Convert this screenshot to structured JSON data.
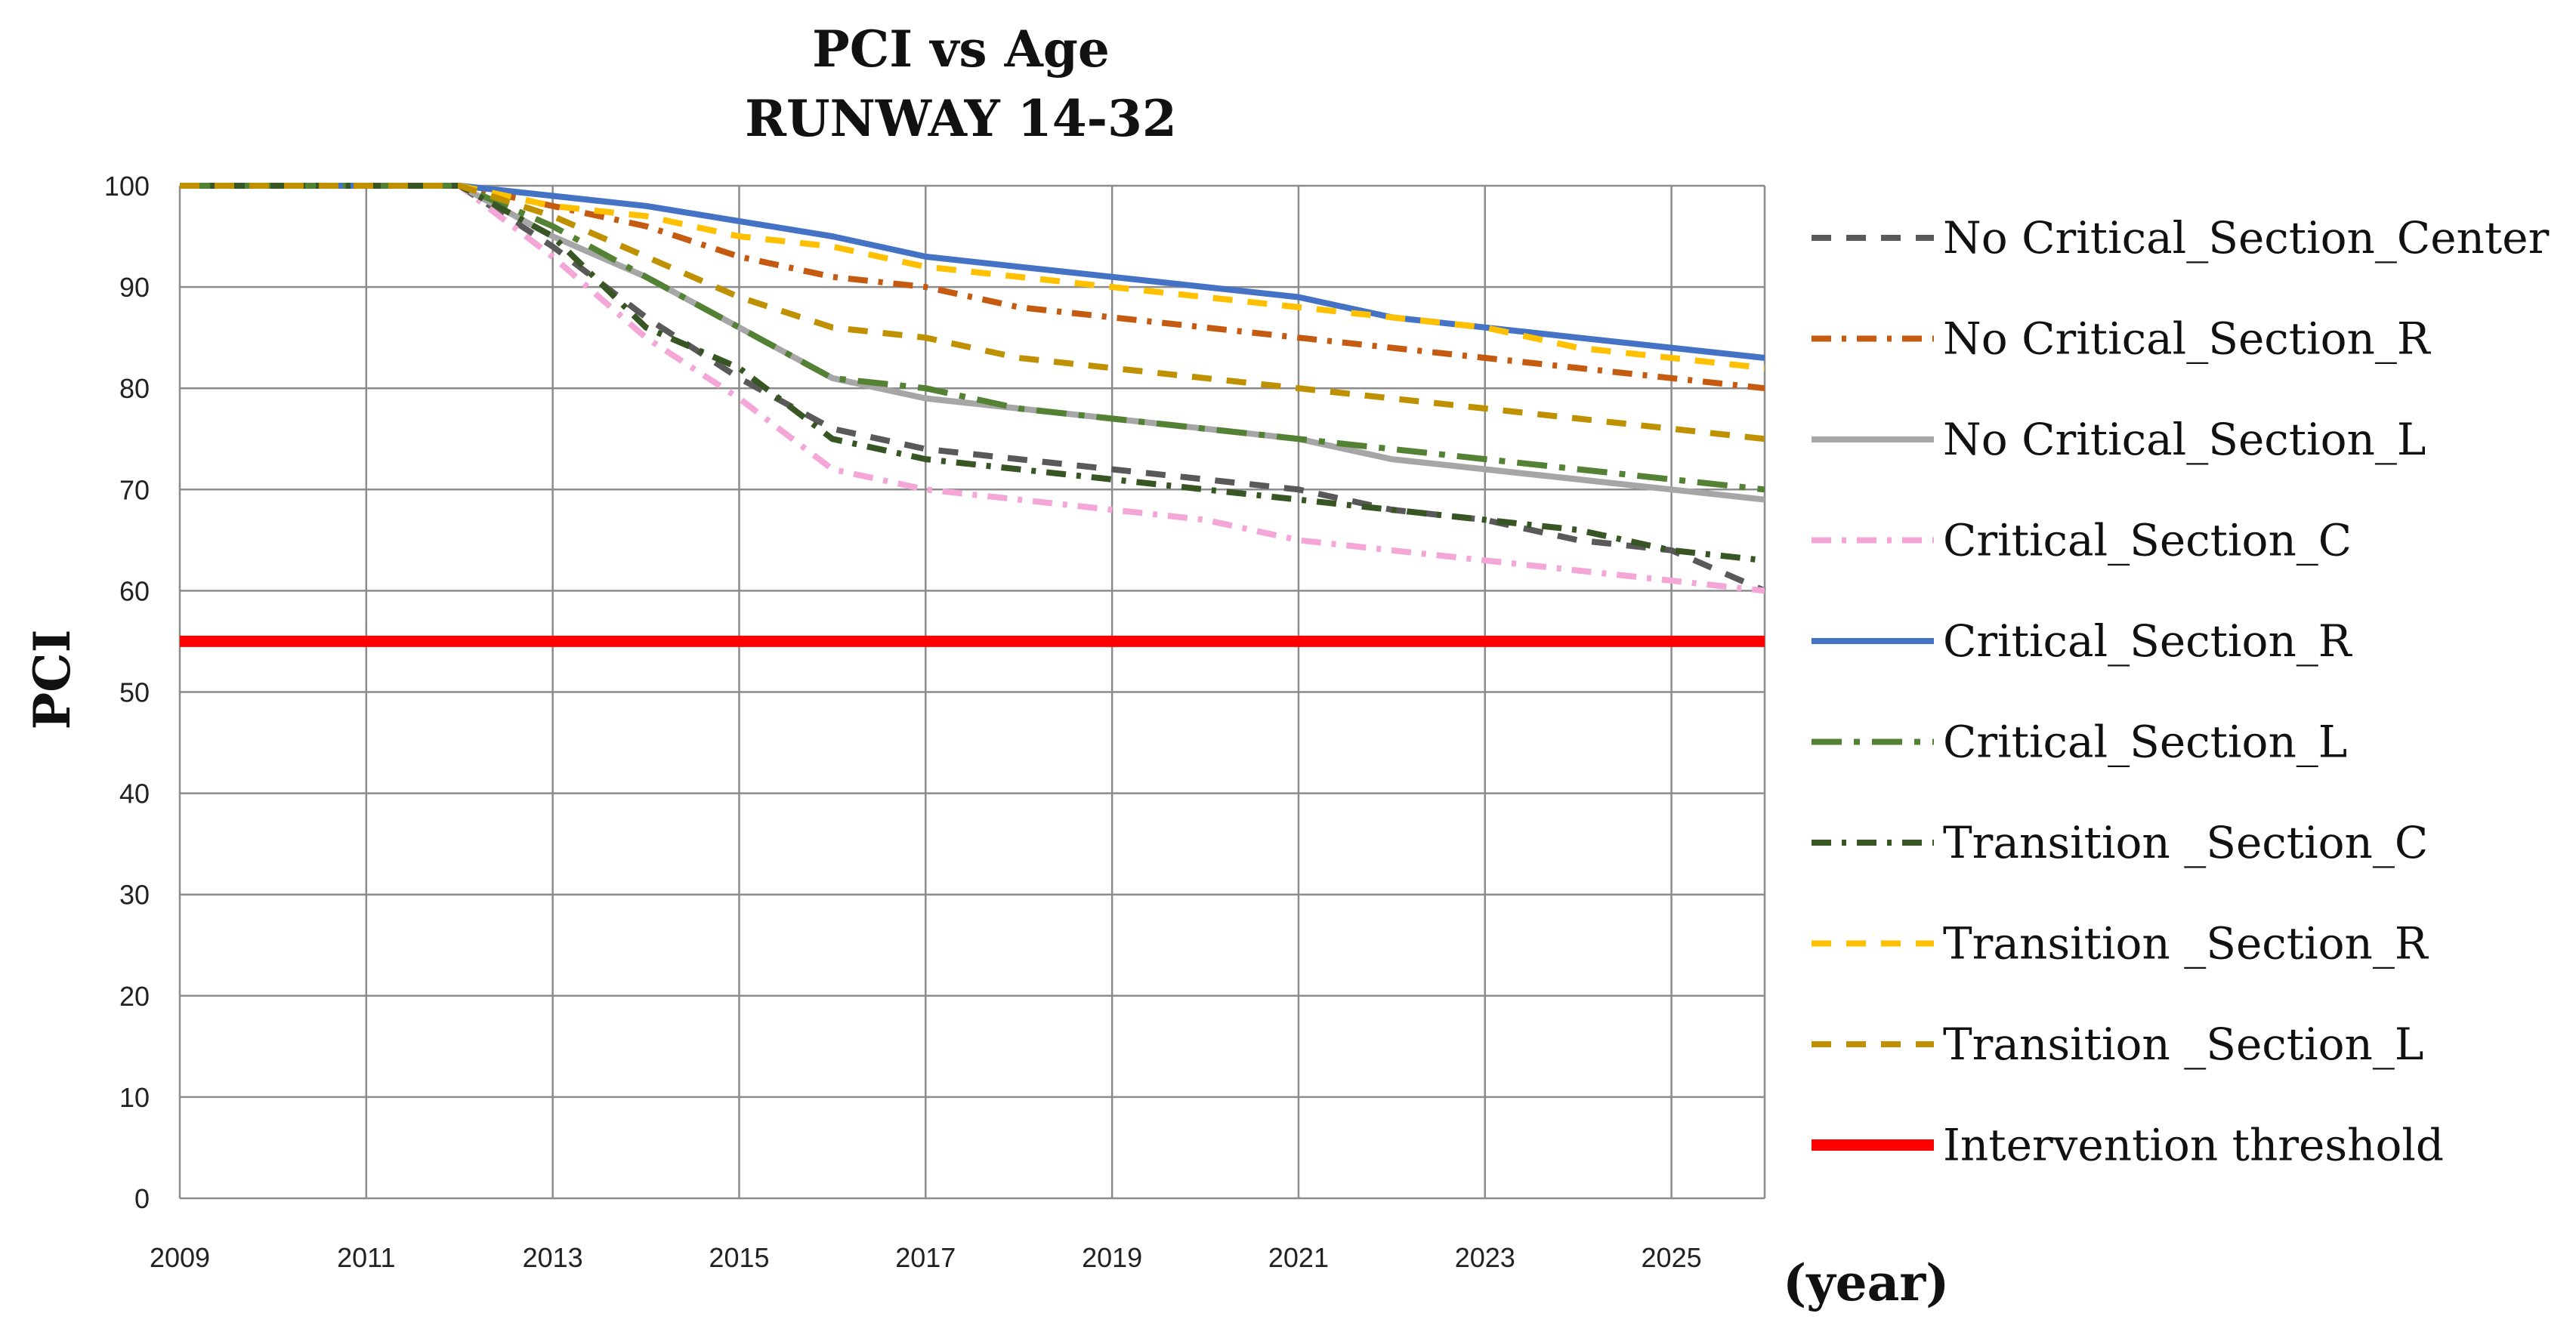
{
  "chart_data": {
    "type": "line",
    "title": [
      "PCI vs Age",
      "RUNWAY 14-32"
    ],
    "xlabel": "(year)",
    "ylabel": "PCI",
    "xlim": [
      2009,
      2026
    ],
    "ylim": [
      0,
      100
    ],
    "xticks": [
      2009,
      2011,
      2013,
      2015,
      2017,
      2019,
      2021,
      2023,
      2025
    ],
    "yticks": [
      0,
      10,
      20,
      30,
      40,
      50,
      60,
      70,
      80,
      90,
      100
    ],
    "grid": true,
    "legend_position": "right",
    "series": [
      {
        "name": "No Critical_Section_Center",
        "color": "#595959",
        "dash": "dash",
        "x": [
          2009,
          2012,
          2013,
          2014,
          2015,
          2016,
          2017,
          2018,
          2019,
          2020,
          2021,
          2022,
          2023,
          2024,
          2025,
          2026
        ],
        "y": [
          100,
          100,
          94,
          87,
          81,
          76,
          74,
          73,
          72,
          71,
          70,
          68,
          67,
          65,
          64,
          60
        ]
      },
      {
        "name": "No Critical_Section_R",
        "color": "#C55A11",
        "dash": "dashdot",
        "x": [
          2009,
          2012,
          2013,
          2014,
          2015,
          2016,
          2017,
          2018,
          2019,
          2020,
          2021,
          2022,
          2023,
          2024,
          2025,
          2026
        ],
        "y": [
          100,
          100,
          98,
          96,
          93,
          91,
          90,
          88,
          87,
          86,
          85,
          84,
          83,
          82,
          81,
          80
        ]
      },
      {
        "name": "No Critical_Section_L",
        "color": "#A6A6A6",
        "dash": "solid",
        "x": [
          2009,
          2012,
          2013,
          2014,
          2015,
          2016,
          2017,
          2018,
          2019,
          2020,
          2021,
          2022,
          2023,
          2024,
          2025,
          2026
        ],
        "y": [
          100,
          100,
          95,
          91,
          86,
          81,
          79,
          78,
          77,
          76,
          75,
          73,
          72,
          71,
          70,
          69
        ]
      },
      {
        "name": "Critical_Section_C",
        "color": "#F4A6D7",
        "dash": "dashdot",
        "x": [
          2009,
          2012,
          2013,
          2014,
          2015,
          2016,
          2017,
          2018,
          2019,
          2020,
          2021,
          2022,
          2023,
          2024,
          2025,
          2026
        ],
        "y": [
          100,
          100,
          93,
          85,
          79,
          72,
          70,
          69,
          68,
          67,
          65,
          64,
          63,
          62,
          61,
          60
        ]
      },
      {
        "name": "Critical_Section_R",
        "color": "#4472C4",
        "dash": "solid",
        "x": [
          2009,
          2012,
          2013,
          2014,
          2015,
          2016,
          2017,
          2018,
          2019,
          2020,
          2021,
          2022,
          2023,
          2024,
          2025,
          2026
        ],
        "y": [
          100,
          100,
          99,
          98,
          96.5,
          95,
          93,
          92,
          91,
          90,
          89,
          87,
          86,
          85,
          84,
          83
        ]
      },
      {
        "name": "Critical_Section_L",
        "color": "#548235",
        "dash": "longdashdot",
        "x": [
          2009,
          2012,
          2013,
          2014,
          2015,
          2016,
          2017,
          2018,
          2019,
          2020,
          2021,
          2022,
          2023,
          2024,
          2025,
          2026
        ],
        "y": [
          100,
          100,
          96,
          91,
          86,
          81,
          80,
          78,
          77,
          76,
          75,
          74,
          73,
          72,
          71,
          70
        ]
      },
      {
        "name": "Transition _Section_C",
        "color": "#375623",
        "dash": "dashdot",
        "x": [
          2009,
          2012,
          2013,
          2014,
          2015,
          2016,
          2017,
          2018,
          2019,
          2020,
          2021,
          2022,
          2023,
          2024,
          2025,
          2026
        ],
        "y": [
          100,
          100,
          95,
          86,
          82,
          75,
          73,
          72,
          71,
          70,
          69,
          68,
          67,
          66,
          64,
          63
        ]
      },
      {
        "name": "Transition _Section_R",
        "color": "#FFC000",
        "dash": "dash",
        "x": [
          2009,
          2012,
          2013,
          2014,
          2015,
          2016,
          2017,
          2018,
          2019,
          2020,
          2021,
          2022,
          2023,
          2024,
          2025,
          2026
        ],
        "y": [
          100,
          100,
          98,
          97,
          95,
          94,
          92,
          91,
          90,
          89,
          88,
          87,
          86,
          84,
          83,
          82
        ]
      },
      {
        "name": "Transition _Section_L",
        "color": "#BF9000",
        "dash": "dash",
        "x": [
          2009,
          2012,
          2013,
          2014,
          2015,
          2016,
          2017,
          2018,
          2019,
          2020,
          2021,
          2022,
          2023,
          2024,
          2025,
          2026
        ],
        "y": [
          100,
          100,
          97,
          93,
          89,
          86,
          85,
          83,
          82,
          81,
          80,
          79,
          78,
          77,
          76,
          75
        ]
      },
      {
        "name": "Intervention threshold",
        "color": "#FF0000",
        "dash": "solid",
        "thick": true,
        "x": [
          2009,
          2026
        ],
        "y": [
          55,
          55
        ]
      }
    ]
  }
}
